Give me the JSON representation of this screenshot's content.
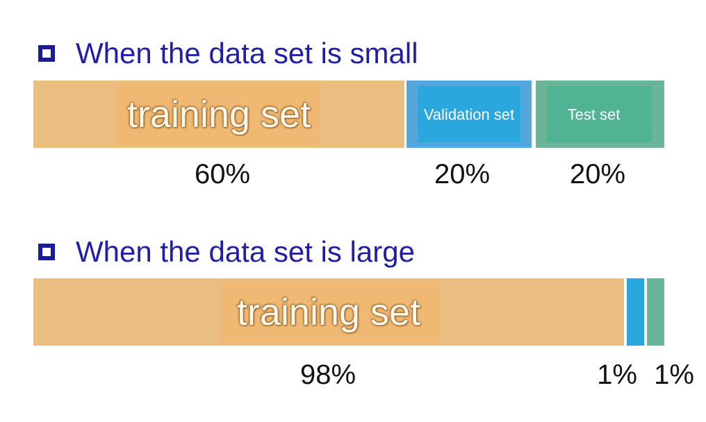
{
  "small": {
    "heading": "When the data set is small",
    "segments": [
      {
        "key": "training",
        "label": "training set",
        "share": 60,
        "percent_label": "60%"
      },
      {
        "key": "validation",
        "label": "Validation set",
        "share": 20,
        "percent_label": "20%"
      },
      {
        "key": "test",
        "label": "Test set",
        "share": 20,
        "percent_label": "20%"
      }
    ]
  },
  "large": {
    "heading": "When the data set is large",
    "segments": [
      {
        "key": "training",
        "label": "training set",
        "share": 98,
        "percent_label": "98%"
      },
      {
        "key": "validation",
        "label": "",
        "share": 1,
        "percent_label": "1%"
      },
      {
        "key": "test",
        "label": "",
        "share": 1,
        "percent_label": "1%"
      }
    ]
  },
  "colors": {
    "heading": "#1f1fa6",
    "training": "#eabe80",
    "validation": "#2aa8dd",
    "test": "#4fb394"
  }
}
